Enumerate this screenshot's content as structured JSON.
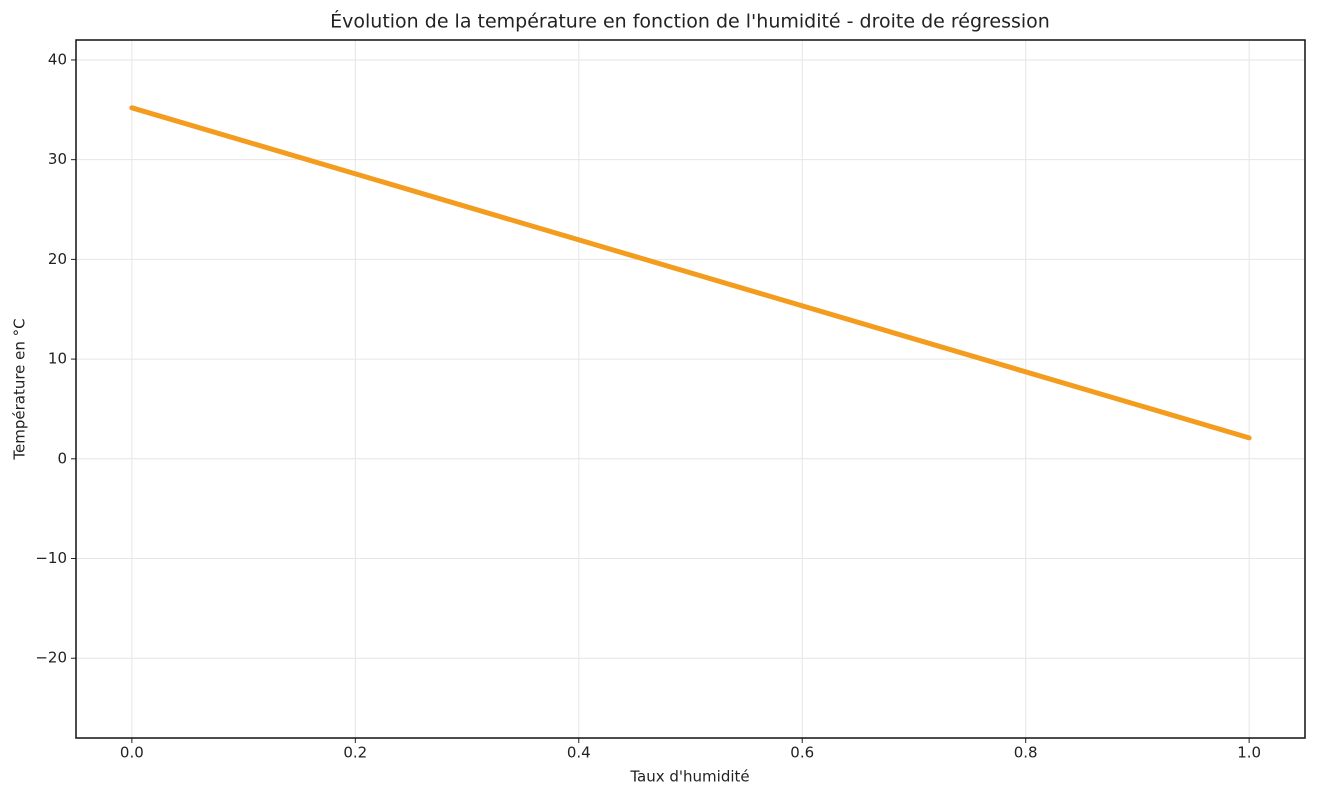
{
  "chart_data": {
    "type": "line",
    "title": "Évolution de la température en fonction de l'humidité - droite de régression",
    "x_label": "Taux d'humidité",
    "y_label": "Température en °C",
    "x": [
      0,
      1
    ],
    "series": [
      {
        "color": "#f39c1d",
        "values": [
          35.2,
          2.1
        ]
      }
    ],
    "xlim": [
      -0.05,
      1.05
    ],
    "ylim": [
      -28,
      42
    ],
    "xticks": [
      {
        "value": 0,
        "label": "0.0"
      },
      0.2,
      0.4,
      0.6,
      0.8,
      {
        "value": 1,
        "label": "1.0"
      }
    ],
    "yticks": [
      {
        "value": -20,
        "label": "−20"
      },
      {
        "value": -10,
        "label": "−10"
      },
      0,
      10,
      20,
      30,
      40
    ],
    "grid": true
  }
}
